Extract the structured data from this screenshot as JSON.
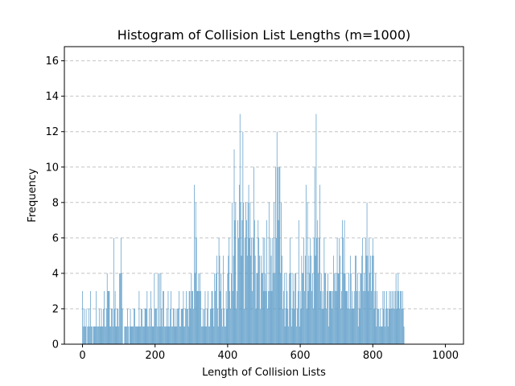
{
  "chart_data": {
    "type": "bar",
    "title": "Histogram of Collision List Lengths (m=1000)",
    "xlabel": "Length of Collision Lists",
    "ylabel": "Frequency",
    "xlim": [
      -50,
      1050
    ],
    "ylim": [
      0,
      16.8
    ],
    "xticks": [
      0,
      200,
      400,
      600,
      800,
      1000
    ],
    "yticks": [
      0,
      2,
      4,
      6,
      8,
      10,
      12,
      14,
      16
    ],
    "grid": "y-dashed",
    "bar_color": "#5b9bc7",
    "x_step": 2,
    "x_start": 0,
    "values": [
      3,
      1,
      2,
      1,
      1,
      2,
      0,
      1,
      1,
      2,
      1,
      3,
      1,
      1,
      0,
      1,
      1,
      1,
      1,
      3,
      1,
      1,
      1,
      2,
      1,
      1,
      2,
      1,
      1,
      2,
      3,
      1,
      1,
      2,
      4,
      3,
      3,
      3,
      1,
      1,
      2,
      2,
      1,
      6,
      2,
      3,
      1,
      1,
      2,
      2,
      1,
      4,
      4,
      6,
      4,
      2,
      0,
      0,
      1,
      1,
      1,
      1,
      2,
      1,
      0,
      1,
      2,
      1,
      1,
      1,
      1,
      2,
      2,
      1,
      1,
      1,
      1,
      1,
      3,
      1,
      1,
      2,
      2,
      1,
      1,
      1,
      2,
      2,
      2,
      3,
      1,
      1,
      2,
      1,
      3,
      2,
      1,
      1,
      1,
      4,
      2,
      2,
      2,
      1,
      4,
      1,
      4,
      1,
      4,
      2,
      1,
      3,
      3,
      1,
      1,
      1,
      2,
      1,
      3,
      1,
      1,
      2,
      3,
      1,
      1,
      2,
      2,
      1,
      1,
      2,
      1,
      2,
      2,
      3,
      1,
      1,
      2,
      2,
      2,
      3,
      1,
      1,
      2,
      3,
      2,
      2,
      1,
      3,
      3,
      2,
      4,
      3,
      3,
      2,
      9,
      4,
      8,
      6,
      3,
      3,
      4,
      3,
      4,
      3,
      1,
      1,
      2,
      1,
      2,
      3,
      1,
      1,
      2,
      3,
      1,
      1,
      2,
      2,
      3,
      3,
      2,
      1,
      4,
      3,
      4,
      5,
      2,
      1,
      6,
      5,
      3,
      4,
      2,
      1,
      5,
      2,
      1,
      1,
      3,
      2,
      4,
      5,
      6,
      3,
      2,
      4,
      8,
      3,
      5,
      11,
      7,
      8,
      2,
      3,
      7,
      6,
      9,
      13,
      8,
      5,
      7,
      12,
      8,
      2,
      6,
      8,
      7,
      5,
      8,
      9,
      6,
      8,
      5,
      6,
      3,
      6,
      10,
      7,
      5,
      2,
      4,
      4,
      7,
      6,
      5,
      2,
      5,
      4,
      4,
      6,
      3,
      6,
      4,
      3,
      7,
      2,
      3,
      8,
      3,
      6,
      5,
      3,
      6,
      4,
      8,
      4,
      10,
      6,
      12,
      10,
      7,
      10,
      10,
      4,
      8,
      5,
      2,
      3,
      4,
      1,
      2,
      4,
      3,
      2,
      1,
      4,
      6,
      4,
      1,
      2,
      4,
      3,
      2,
      4,
      4,
      1,
      2,
      3,
      7,
      1,
      3,
      2,
      5,
      4,
      4,
      6,
      3,
      5,
      9,
      2,
      8,
      3,
      5,
      4,
      6,
      5,
      3,
      4,
      2,
      6,
      10,
      5,
      13,
      6,
      7,
      4,
      6,
      9,
      3,
      4,
      2,
      3,
      2,
      6,
      4,
      4,
      2,
      3,
      4,
      1,
      3,
      3,
      3,
      3,
      2,
      3,
      5,
      4,
      3,
      4,
      3,
      6,
      4,
      4,
      6,
      5,
      2,
      3,
      7,
      6,
      4,
      7,
      4,
      3,
      3,
      3,
      2,
      4,
      2,
      5,
      4,
      2,
      3,
      2,
      2,
      3,
      5,
      5,
      3,
      4,
      1,
      3,
      2,
      4,
      4,
      5,
      6,
      3,
      4,
      3,
      6,
      5,
      8,
      5,
      3,
      6,
      4,
      5,
      3,
      5,
      6,
      5,
      2,
      3,
      4,
      1,
      3,
      2,
      2,
      1,
      2,
      1,
      1,
      1,
      3,
      2,
      3,
      1,
      2,
      3,
      2,
      1,
      2,
      3,
      2,
      3,
      2,
      3,
      2,
      3,
      2,
      3,
      4,
      2,
      3,
      4,
      3,
      2,
      3,
      3,
      2,
      3,
      2,
      1
    ]
  }
}
